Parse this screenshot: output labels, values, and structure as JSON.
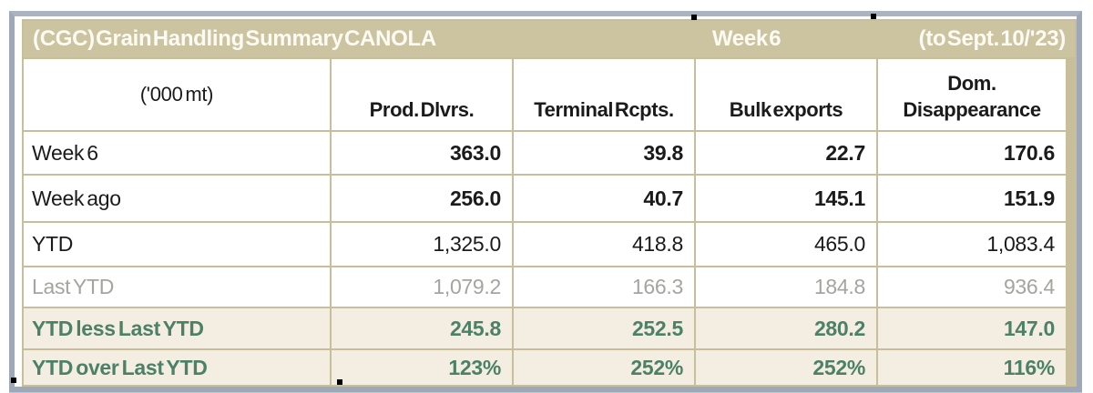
{
  "title": {
    "left": "(CGC) Grain Handling Summary CANOLA",
    "center": "Week 6",
    "right": "(to Sept. 10/'23)"
  },
  "columns": {
    "unit_label": "('000 mt)",
    "headers": [
      "Prod. Dlvrs.",
      "Terminal Rcpts.",
      "Bulk exports",
      "Dom.\nDisappearance"
    ]
  },
  "rows": [
    {
      "label": "Week 6",
      "values": [
        "363.0",
        "39.8",
        "22.7",
        "170.6"
      ]
    },
    {
      "label": "Week ago",
      "values": [
        "256.0",
        "40.7",
        "145.1",
        "151.9"
      ]
    },
    {
      "label": "YTD",
      "values": [
        "1,325.0",
        "418.8",
        "465.0",
        "1,083.4"
      ]
    },
    {
      "label": "Last YTD",
      "values": [
        "1,079.2",
        "166.3",
        "184.8",
        "936.4"
      ]
    },
    {
      "label": "YTD less Last YTD",
      "values": [
        "245.8",
        "252.5",
        "280.2",
        "147.0"
      ]
    },
    {
      "label": "YTD over Last YTD",
      "values": [
        "123%",
        "252%",
        "252%",
        "116%"
      ]
    }
  ],
  "colors": {
    "header_bg": "#ccc3a1",
    "header_text": "#fcfbf3",
    "border_tan": "#c8be9b",
    "accent_green": "#4c8067",
    "summary_bg": "#f3eee1",
    "muted_gray": "#a5a4a0",
    "frame_gray": "#9fa8b6"
  }
}
